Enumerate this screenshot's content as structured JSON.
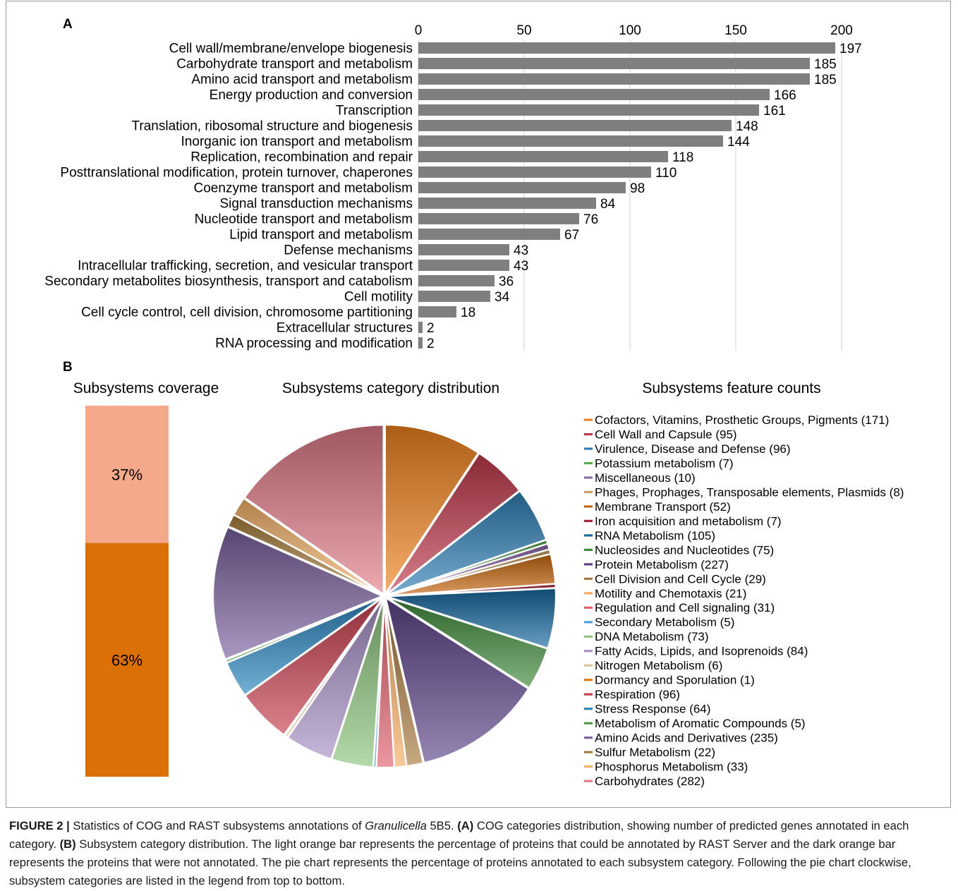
{
  "panels": {
    "a": "A",
    "b": "B"
  },
  "chart_data": [
    {
      "type": "bar",
      "orientation": "horizontal",
      "title": "",
      "xlabel": "",
      "ylabel": "",
      "xlim": [
        0,
        200
      ],
      "x_ticks": [
        "0",
        "50",
        "100",
        "150",
        "200"
      ],
      "grid": true,
      "bar_color": "#7f7f7f",
      "categories": [
        "Cell wall/membrane/envelope biogenesis",
        "Carbohydrate transport and metabolism",
        "Amino acid transport and metabolism",
        "Energy production and conversion",
        "Transcription",
        "Translation, ribosomal structure and biogenesis",
        "Inorganic ion transport and metabolism",
        "Replication, recombination and repair",
        "Posttranslational modification, protein turnover, chaperones",
        "Coenzyme transport and metabolism",
        "Signal transduction mechanisms",
        "Nucleotide transport and metabolism",
        "Lipid transport and metabolism",
        "Defense mechanisms",
        "Intracellular trafficking, secretion, and vesicular transport",
        "Secondary metabolites biosynthesis, transport and catabolism",
        "Cell motility",
        "Cell cycle control, cell division, chromosome partitioning",
        "Extracellular structures",
        "RNA processing and modification"
      ],
      "values": [
        197,
        185,
        185,
        166,
        161,
        148,
        144,
        118,
        110,
        98,
        84,
        76,
        67,
        43,
        43,
        36,
        34,
        18,
        2,
        2
      ],
      "data_labels": [
        "197",
        "185",
        "185",
        "166",
        "161",
        "148",
        "144",
        "118",
        "110",
        "98",
        "84",
        "76",
        "67",
        "43",
        "43",
        "36",
        "34",
        "18",
        "2",
        "2"
      ]
    },
    {
      "type": "bar",
      "stacked": true,
      "title": "Subsystems coverage",
      "segments": [
        {
          "label": "37%",
          "value": 37,
          "color": "#f4a98a"
        },
        {
          "label": "63%",
          "value": 63,
          "color": "#db7106"
        }
      ]
    },
    {
      "type": "pie",
      "title": "Subsystems category distribution",
      "legend_title": "Subsystems feature counts",
      "legend_position": "right",
      "direction": "clockwise",
      "start": "top",
      "slices": [
        {
          "label": "Cofactors, Vitamins, Prosthetic Groups, Pigments (171)",
          "value": 171,
          "color": "#f0821d"
        },
        {
          "label": "Cell Wall and Capsule (95)",
          "value": 95,
          "color": "#c0394b"
        },
        {
          "label": "Virulence, Disease and Defense (96)",
          "value": 96,
          "color": "#2e7fb5"
        },
        {
          "label": "Potassium metabolism (7)",
          "value": 7,
          "color": "#5aab52"
        },
        {
          "label": "Miscellaneous (10)",
          "value": 10,
          "color": "#8e6bab"
        },
        {
          "label": "Phages, Prophages, Transposable elements, Plasmids (8)",
          "value": 8,
          "color": "#c8a064"
        },
        {
          "label": "Membrane Transport (52)",
          "value": 52,
          "color": "#c7650c"
        },
        {
          "label": "Iron acquisition and metabolism (7)",
          "value": 7,
          "color": "#a4243a"
        },
        {
          "label": "RNA Metabolism (105)",
          "value": 105,
          "color": "#16689f"
        },
        {
          "label": "Nucleosides and Nucleotides (75)",
          "value": 75,
          "color": "#3f8a3a"
        },
        {
          "label": "Protein Metabolism (227)",
          "value": 227,
          "color": "#5b4488"
        },
        {
          "label": "Cell Division and Cell Cycle (29)",
          "value": 29,
          "color": "#a7793e"
        },
        {
          "label": "Motility and Chemotaxis (21)",
          "value": 21,
          "color": "#f6ad62"
        },
        {
          "label": "Regulation and Cell signaling (31)",
          "value": 31,
          "color": "#e2606f"
        },
        {
          "label": "Secondary Metabolism (5)",
          "value": 5,
          "color": "#4f9fd1"
        },
        {
          "label": "DNA Metabolism (73)",
          "value": 73,
          "color": "#8cc47c"
        },
        {
          "label": "Fatty Acids, Lipids, and Isoprenoids (84)",
          "value": 84,
          "color": "#a58ec3"
        },
        {
          "label": "Nitrogen Metabolism (6)",
          "value": 6,
          "color": "#dcc39a"
        },
        {
          "label": "Dormancy and Sporulation (1)",
          "value": 1,
          "color": "#e07d12"
        },
        {
          "label": "Respiration (96)",
          "value": 96,
          "color": "#c8404f"
        },
        {
          "label": "Stress Response (64)",
          "value": 64,
          "color": "#2a85bf"
        },
        {
          "label": "Metabolism of Aromatic Compounds (5)",
          "value": 5,
          "color": "#509a48"
        },
        {
          "label": "Amino Acids and Derivatives (235)",
          "value": 235,
          "color": "#7a619f"
        },
        {
          "label": "Sulfur Metabolism (22)",
          "value": 22,
          "color": "#a77d3c"
        },
        {
          "label": "Phosphorus Metabolism (33)",
          "value": 33,
          "color": "#f4b26a"
        },
        {
          "label": "Carbohydrates (282)",
          "value": 282,
          "color": "#e07a86"
        }
      ]
    }
  ],
  "caption": {
    "figure_label": "FIGURE 2 |",
    "text1": " Statistics of COG and RAST subsystems annotations of ",
    "organism": "Granulicella",
    "text2": " 5B5. ",
    "a_label": "(A)",
    "text3": " COG categories distribution, showing number of predicted genes annotated in each category. ",
    "b_label": "(B)",
    "text4": " Subsystem category distribution. The light orange bar represents the percentage of proteins that could be annotated by RAST Server and the dark orange bar represents the proteins that were not annotated. The pie chart represents the percentage of proteins annotated to each subsystem category. Following the pie chart clockwise, subsystem categories are listed in the legend from top to bottom."
  }
}
